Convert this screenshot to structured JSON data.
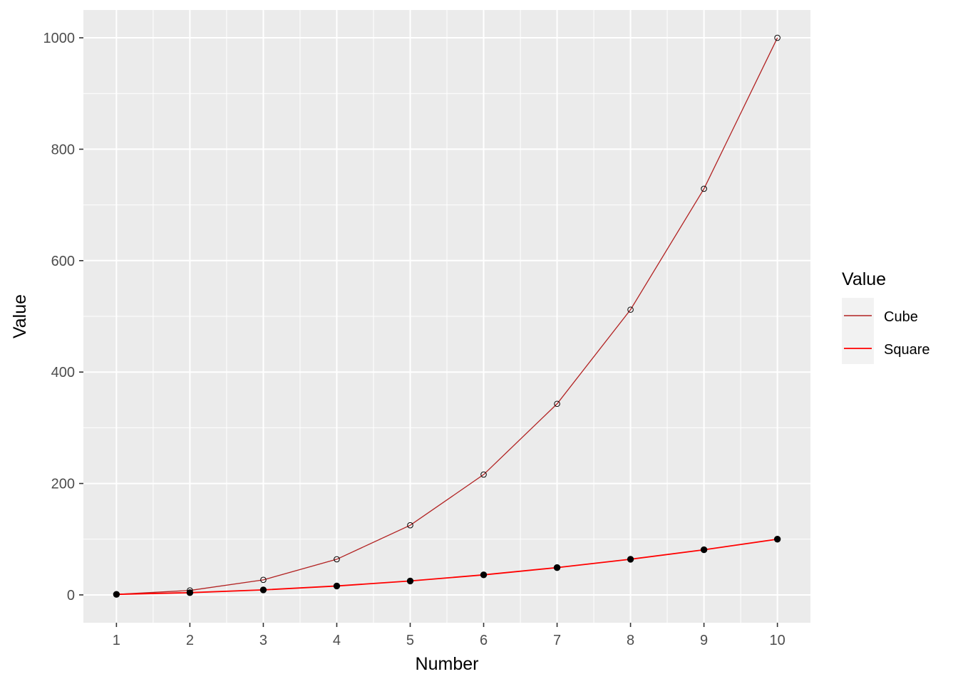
{
  "chart_data": {
    "type": "line",
    "xlabel": "Number",
    "ylabel": "Value",
    "x": [
      1,
      2,
      3,
      4,
      5,
      6,
      7,
      8,
      9,
      10
    ],
    "xlim": [
      0.55,
      10.45
    ],
    "ylim": [
      -49.95,
      1049.95
    ],
    "x_ticks": [
      1,
      2,
      3,
      4,
      5,
      6,
      7,
      8,
      9,
      10
    ],
    "y_ticks": [
      0,
      200,
      400,
      600,
      800,
      1000
    ],
    "x_tick_labels": [
      "1",
      "2",
      "3",
      "4",
      "5",
      "6",
      "7",
      "8",
      "9",
      "10"
    ],
    "y_tick_labels": [
      "0",
      "200",
      "400",
      "600",
      "800",
      "1000"
    ],
    "grid": true,
    "panel_background": "#ebebeb",
    "series": [
      {
        "name": "Cube",
        "values": [
          1,
          8,
          27,
          64,
          125,
          216,
          343,
          512,
          729,
          1000
        ],
        "color": "#b22222",
        "point_style": "open-circle"
      },
      {
        "name": "Square",
        "values": [
          1,
          4,
          9,
          16,
          25,
          36,
          49,
          64,
          81,
          100
        ],
        "color": "#ff0000",
        "point_style": "filled-circle"
      }
    ],
    "legend": {
      "title": "Value",
      "position": "right",
      "items": [
        "Cube",
        "Square"
      ]
    }
  }
}
